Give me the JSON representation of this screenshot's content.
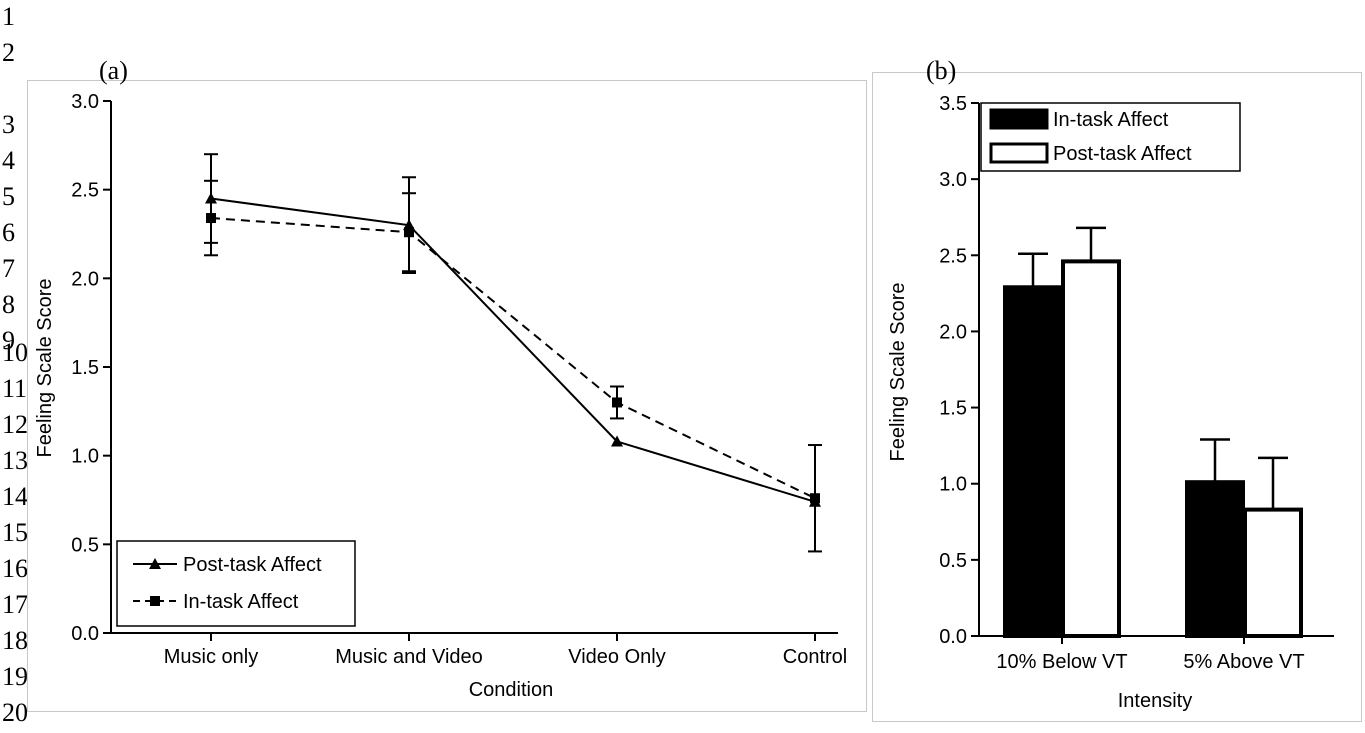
{
  "line_numbers": [
    "1",
    "2",
    "3",
    "4",
    "5",
    "6",
    "7",
    "8",
    "9",
    "10",
    "11",
    "12",
    "13",
    "14",
    "15",
    "16",
    "17",
    "18",
    "19",
    "20"
  ],
  "chart_data": [
    {
      "panel_label": "(a)",
      "type": "line",
      "xlabel": "Condition",
      "ylabel": "Feeling Scale Score",
      "categories": [
        "Music only",
        "Music and Video",
        "Video Only",
        "Control"
      ],
      "ylim": [
        0,
        3.0
      ],
      "yticks": [
        "0.0",
        "0.5",
        "1.0",
        "1.5",
        "2.0",
        "2.5",
        "3.0"
      ],
      "grid": false,
      "legend_position": "bottom-left",
      "series": [
        {
          "name": "Post-task Affect",
          "values": [
            2.45,
            2.3,
            1.08,
            0.74
          ],
          "errors": [
            0.25,
            0.27,
            0.0,
            0.0
          ],
          "marker": "triangle",
          "line_style": "solid"
        },
        {
          "name": "In-task Affect",
          "values": [
            2.34,
            2.26,
            1.3,
            0.76
          ],
          "errors": [
            0.21,
            0.22,
            0.09,
            0.3
          ],
          "marker": "square",
          "line_style": "dashed"
        }
      ]
    },
    {
      "panel_label": "(b)",
      "type": "bar",
      "xlabel": "Intensity",
      "ylabel": "Feeling Scale Score",
      "categories": [
        "10% Below VT",
        "5% Above VT"
      ],
      "ylim": [
        0,
        3.5
      ],
      "yticks": [
        "0.0",
        "0.5",
        "1.0",
        "1.5",
        "2.0",
        "2.5",
        "3.0",
        "3.5"
      ],
      "grid": false,
      "legend_position": "top-left",
      "series": [
        {
          "name": "In-task Affect",
          "values": [
            2.29,
            1.01
          ],
          "errors": [
            0.22,
            0.28
          ],
          "fill": "#000000"
        },
        {
          "name": "Post-task Affect",
          "values": [
            2.46,
            0.83
          ],
          "errors": [
            0.22,
            0.34
          ],
          "fill": "#ffffff"
        }
      ]
    }
  ]
}
